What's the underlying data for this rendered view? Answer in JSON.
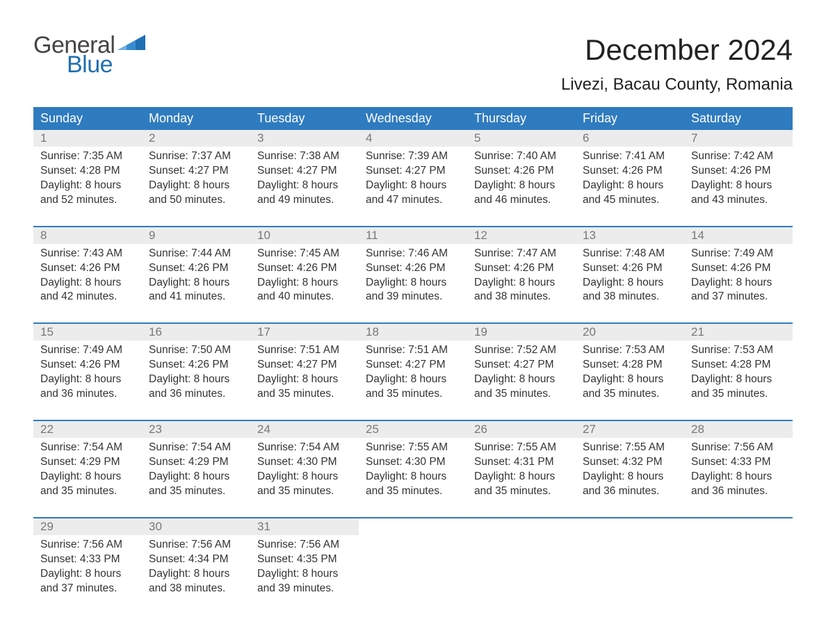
{
  "brand": {
    "general": "General",
    "blue": "Blue"
  },
  "title": "December 2024",
  "location": "Livezi, Bacau County, Romania",
  "colors": {
    "header_bg": "#2f7bbf",
    "header_text": "#ffffff",
    "daynum_bg": "#ececec",
    "daynum_text": "#777777",
    "body_text": "#333333",
    "accent": "#1f6fb2",
    "page_bg": "#ffffff"
  },
  "typography": {
    "title_fontsize": 42,
    "location_fontsize": 24,
    "header_fontsize": 18,
    "daynum_fontsize": 17,
    "cell_fontsize": 15.5,
    "logo_fontsize": 34
  },
  "weekday_labels": [
    "Sunday",
    "Monday",
    "Tuesday",
    "Wednesday",
    "Thursday",
    "Friday",
    "Saturday"
  ],
  "weeks": [
    [
      {
        "day": "1",
        "sunrise": "Sunrise: 7:35 AM",
        "sunset": "Sunset: 4:28 PM",
        "dl1": "Daylight: 8 hours",
        "dl2": "and 52 minutes."
      },
      {
        "day": "2",
        "sunrise": "Sunrise: 7:37 AM",
        "sunset": "Sunset: 4:27 PM",
        "dl1": "Daylight: 8 hours",
        "dl2": "and 50 minutes."
      },
      {
        "day": "3",
        "sunrise": "Sunrise: 7:38 AM",
        "sunset": "Sunset: 4:27 PM",
        "dl1": "Daylight: 8 hours",
        "dl2": "and 49 minutes."
      },
      {
        "day": "4",
        "sunrise": "Sunrise: 7:39 AM",
        "sunset": "Sunset: 4:27 PM",
        "dl1": "Daylight: 8 hours",
        "dl2": "and 47 minutes."
      },
      {
        "day": "5",
        "sunrise": "Sunrise: 7:40 AM",
        "sunset": "Sunset: 4:26 PM",
        "dl1": "Daylight: 8 hours",
        "dl2": "and 46 minutes."
      },
      {
        "day": "6",
        "sunrise": "Sunrise: 7:41 AM",
        "sunset": "Sunset: 4:26 PM",
        "dl1": "Daylight: 8 hours",
        "dl2": "and 45 minutes."
      },
      {
        "day": "7",
        "sunrise": "Sunrise: 7:42 AM",
        "sunset": "Sunset: 4:26 PM",
        "dl1": "Daylight: 8 hours",
        "dl2": "and 43 minutes."
      }
    ],
    [
      {
        "day": "8",
        "sunrise": "Sunrise: 7:43 AM",
        "sunset": "Sunset: 4:26 PM",
        "dl1": "Daylight: 8 hours",
        "dl2": "and 42 minutes."
      },
      {
        "day": "9",
        "sunrise": "Sunrise: 7:44 AM",
        "sunset": "Sunset: 4:26 PM",
        "dl1": "Daylight: 8 hours",
        "dl2": "and 41 minutes."
      },
      {
        "day": "10",
        "sunrise": "Sunrise: 7:45 AM",
        "sunset": "Sunset: 4:26 PM",
        "dl1": "Daylight: 8 hours",
        "dl2": "and 40 minutes."
      },
      {
        "day": "11",
        "sunrise": "Sunrise: 7:46 AM",
        "sunset": "Sunset: 4:26 PM",
        "dl1": "Daylight: 8 hours",
        "dl2": "and 39 minutes."
      },
      {
        "day": "12",
        "sunrise": "Sunrise: 7:47 AM",
        "sunset": "Sunset: 4:26 PM",
        "dl1": "Daylight: 8 hours",
        "dl2": "and 38 minutes."
      },
      {
        "day": "13",
        "sunrise": "Sunrise: 7:48 AM",
        "sunset": "Sunset: 4:26 PM",
        "dl1": "Daylight: 8 hours",
        "dl2": "and 38 minutes."
      },
      {
        "day": "14",
        "sunrise": "Sunrise: 7:49 AM",
        "sunset": "Sunset: 4:26 PM",
        "dl1": "Daylight: 8 hours",
        "dl2": "and 37 minutes."
      }
    ],
    [
      {
        "day": "15",
        "sunrise": "Sunrise: 7:49 AM",
        "sunset": "Sunset: 4:26 PM",
        "dl1": "Daylight: 8 hours",
        "dl2": "and 36 minutes."
      },
      {
        "day": "16",
        "sunrise": "Sunrise: 7:50 AM",
        "sunset": "Sunset: 4:26 PM",
        "dl1": "Daylight: 8 hours",
        "dl2": "and 36 minutes."
      },
      {
        "day": "17",
        "sunrise": "Sunrise: 7:51 AM",
        "sunset": "Sunset: 4:27 PM",
        "dl1": "Daylight: 8 hours",
        "dl2": "and 35 minutes."
      },
      {
        "day": "18",
        "sunrise": "Sunrise: 7:51 AM",
        "sunset": "Sunset: 4:27 PM",
        "dl1": "Daylight: 8 hours",
        "dl2": "and 35 minutes."
      },
      {
        "day": "19",
        "sunrise": "Sunrise: 7:52 AM",
        "sunset": "Sunset: 4:27 PM",
        "dl1": "Daylight: 8 hours",
        "dl2": "and 35 minutes."
      },
      {
        "day": "20",
        "sunrise": "Sunrise: 7:53 AM",
        "sunset": "Sunset: 4:28 PM",
        "dl1": "Daylight: 8 hours",
        "dl2": "and 35 minutes."
      },
      {
        "day": "21",
        "sunrise": "Sunrise: 7:53 AM",
        "sunset": "Sunset: 4:28 PM",
        "dl1": "Daylight: 8 hours",
        "dl2": "and 35 minutes."
      }
    ],
    [
      {
        "day": "22",
        "sunrise": "Sunrise: 7:54 AM",
        "sunset": "Sunset: 4:29 PM",
        "dl1": "Daylight: 8 hours",
        "dl2": "and 35 minutes."
      },
      {
        "day": "23",
        "sunrise": "Sunrise: 7:54 AM",
        "sunset": "Sunset: 4:29 PM",
        "dl1": "Daylight: 8 hours",
        "dl2": "and 35 minutes."
      },
      {
        "day": "24",
        "sunrise": "Sunrise: 7:54 AM",
        "sunset": "Sunset: 4:30 PM",
        "dl1": "Daylight: 8 hours",
        "dl2": "and 35 minutes."
      },
      {
        "day": "25",
        "sunrise": "Sunrise: 7:55 AM",
        "sunset": "Sunset: 4:30 PM",
        "dl1": "Daylight: 8 hours",
        "dl2": "and 35 minutes."
      },
      {
        "day": "26",
        "sunrise": "Sunrise: 7:55 AM",
        "sunset": "Sunset: 4:31 PM",
        "dl1": "Daylight: 8 hours",
        "dl2": "and 35 minutes."
      },
      {
        "day": "27",
        "sunrise": "Sunrise: 7:55 AM",
        "sunset": "Sunset: 4:32 PM",
        "dl1": "Daylight: 8 hours",
        "dl2": "and 36 minutes."
      },
      {
        "day": "28",
        "sunrise": "Sunrise: 7:56 AM",
        "sunset": "Sunset: 4:33 PM",
        "dl1": "Daylight: 8 hours",
        "dl2": "and 36 minutes."
      }
    ],
    [
      {
        "day": "29",
        "sunrise": "Sunrise: 7:56 AM",
        "sunset": "Sunset: 4:33 PM",
        "dl1": "Daylight: 8 hours",
        "dl2": "and 37 minutes."
      },
      {
        "day": "30",
        "sunrise": "Sunrise: 7:56 AM",
        "sunset": "Sunset: 4:34 PM",
        "dl1": "Daylight: 8 hours",
        "dl2": "and 38 minutes."
      },
      {
        "day": "31",
        "sunrise": "Sunrise: 7:56 AM",
        "sunset": "Sunset: 4:35 PM",
        "dl1": "Daylight: 8 hours",
        "dl2": "and 39 minutes."
      },
      null,
      null,
      null,
      null
    ]
  ]
}
